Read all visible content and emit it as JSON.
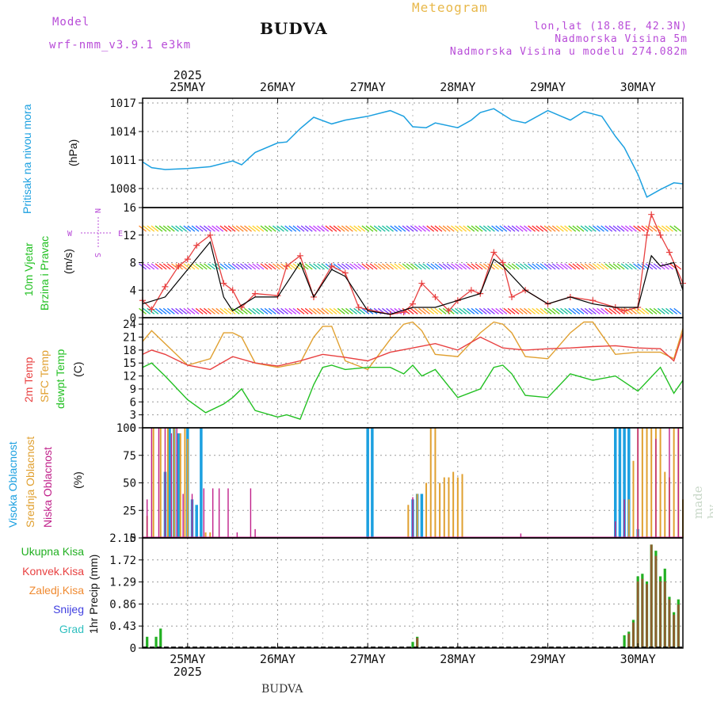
{
  "header": {
    "model_label": "Model",
    "model_name": "wrf-nmm_v3.9.1 e3km",
    "title": "BUDVA",
    "meteogram": "Meteogram",
    "lonlat": "lon,lat (18.8E, 42.3N)",
    "elevation": "Nadmorska Visina 5m",
    "model_elevation": "Nadmorska Visina u modelu 274.082m"
  },
  "footer": {
    "station": "BUDVA",
    "made_by": "made by Angel"
  },
  "x_axis": {
    "year": "2025",
    "dates": [
      "25MAY",
      "26MAY",
      "27MAY",
      "28MAY",
      "29MAY",
      "30MAY"
    ],
    "start_day": 24.5,
    "end_day": 30.5
  },
  "panels": {
    "pressure": {
      "label": "Pritisak na nivou mora",
      "unit": "(hPa)",
      "color": "#1ca0e0"
    },
    "wind": {
      "label1": "10m Vjetar",
      "label2": "Brzina i Pravac",
      "unit": "(m/s)",
      "color": "#22c022",
      "compass": {
        "n": "N",
        "w": "W",
        "e": "E",
        "s": "S"
      }
    },
    "temp": {
      "label1": "2m Temp",
      "label2": "SFC Temp",
      "label3": "dewpt Temp",
      "unit": "(C)",
      "colors": {
        "t2m": "#e84040",
        "sfc": "#e0a030",
        "dew": "#22c022"
      }
    },
    "cloud": {
      "label1": "Visoka Oblacnost",
      "label2": "Srednja Oblacnost",
      "label3": "Niska Oblacnost",
      "unit": "(%)",
      "colors": {
        "high": "#1ca0e0",
        "mid": "#e0a030",
        "low": "#c0208a"
      }
    },
    "precip": {
      "unit": "1hr Precip (mm)",
      "legend": [
        {
          "name": "Ukupna Kisa",
          "color": "#22b022"
        },
        {
          "name": "Konvek.Kisa",
          "color": "#e84040"
        },
        {
          "name": "Zaledj.Kisa",
          "color": "#f08a30"
        },
        {
          "name": "Snijeg",
          "color": "#4040e0"
        },
        {
          "name": "Grad",
          "color": "#30c0c0"
        }
      ]
    }
  },
  "chart_data": [
    {
      "type": "line",
      "title": "Pritisak na nivou mora",
      "ylabel": "hPa",
      "ylim": [
        1006,
        1017.5
      ],
      "yticks": [
        1008,
        1011,
        1014,
        1017
      ],
      "x": [
        24.5,
        24.6,
        24.75,
        25.0,
        25.25,
        25.5,
        25.6,
        25.75,
        26.0,
        26.1,
        26.25,
        26.4,
        26.6,
        26.75,
        27.0,
        27.25,
        27.4,
        27.5,
        27.65,
        27.75,
        28.0,
        28.15,
        28.25,
        28.4,
        28.6,
        28.75,
        29.0,
        29.15,
        29.25,
        29.4,
        29.6,
        29.75,
        29.85,
        30.0,
        30.1,
        30.25,
        30.4,
        30.5
      ],
      "values": [
        1010.8,
        1010.2,
        1010.0,
        1010.1,
        1010.3,
        1010.9,
        1010.5,
        1011.8,
        1012.8,
        1012.9,
        1014.3,
        1015.5,
        1014.8,
        1015.2,
        1015.6,
        1016.2,
        1015.6,
        1014.5,
        1014.4,
        1014.9,
        1014.4,
        1015.2,
        1016.0,
        1016.4,
        1015.2,
        1014.9,
        1016.2,
        1015.6,
        1015.2,
        1016.1,
        1015.6,
        1013.5,
        1012.3,
        1009.5,
        1007.1,
        1007.9,
        1008.6,
        1008.5
      ],
      "series": [
        {
          "name": "Pritisak",
          "values_ref": "values"
        }
      ]
    },
    {
      "type": "line",
      "title": "10m Vjetar Brzina i Pravac",
      "ylabel": "m/s",
      "ylim": [
        0,
        16
      ],
      "yticks": [
        0,
        4,
        8,
        12,
        16
      ],
      "series": [
        {
          "name": "Brzina (crveno)",
          "x": [
            24.5,
            24.6,
            24.75,
            24.9,
            25.0,
            25.1,
            25.25,
            25.4,
            25.5,
            25.6,
            25.75,
            26.0,
            26.1,
            26.25,
            26.4,
            26.6,
            26.75,
            26.9,
            27.0,
            27.25,
            27.4,
            27.5,
            27.6,
            27.75,
            27.9,
            28.0,
            28.15,
            28.25,
            28.4,
            28.5,
            28.6,
            28.75,
            29.0,
            29.25,
            29.5,
            29.75,
            29.85,
            30.0,
            30.1,
            30.15,
            30.25,
            30.35,
            30.5
          ],
          "values": [
            2.5,
            1.2,
            4.5,
            7.5,
            8.5,
            10.5,
            12.0,
            5.0,
            4.0,
            1.5,
            3.5,
            3.2,
            7.5,
            9.0,
            3.0,
            7.5,
            6.5,
            1.5,
            1.2,
            0.5,
            0.8,
            2.0,
            5.0,
            3.0,
            1.0,
            2.5,
            4.0,
            3.5,
            9.5,
            8.0,
            3.0,
            4.0,
            2.0,
            3.0,
            2.5,
            1.5,
            1.0,
            1.5,
            12.0,
            15.0,
            12.0,
            9.5,
            5.0
          ]
        },
        {
          "name": "Brzina (crno)",
          "x": [
            24.5,
            24.75,
            25.0,
            25.25,
            25.4,
            25.5,
            25.75,
            26.0,
            26.25,
            26.4,
            26.6,
            26.75,
            27.0,
            27.25,
            27.5,
            27.75,
            28.0,
            28.25,
            28.4,
            28.5,
            28.75,
            29.0,
            29.25,
            29.5,
            29.75,
            30.0,
            30.15,
            30.25,
            30.4,
            30.5
          ],
          "values": [
            2.0,
            3.0,
            7.0,
            11.0,
            3.0,
            1.0,
            3.0,
            3.0,
            8.0,
            3.0,
            7.0,
            6.0,
            1.0,
            0.5,
            1.5,
            1.5,
            2.5,
            3.5,
            8.5,
            7.5,
            4.0,
            2.0,
            3.0,
            2.0,
            1.5,
            1.5,
            9.0,
            7.5,
            8.0,
            4.0
          ]
        }
      ]
    },
    {
      "type": "line",
      "title": "2m Temp / SFC Temp / dewpt Temp",
      "ylabel": "C",
      "ylim": [
        0,
        25.5
      ],
      "yticks": [
        0,
        3,
        6,
        9,
        12,
        15,
        18,
        21,
        24
      ],
      "series": [
        {
          "name": "2m Temp",
          "x": [
            24.5,
            24.6,
            24.75,
            25.0,
            25.25,
            25.5,
            25.75,
            26.0,
            26.25,
            26.5,
            26.75,
            27.0,
            27.25,
            27.5,
            27.75,
            28.0,
            28.25,
            28.5,
            28.75,
            29.0,
            29.25,
            29.5,
            29.75,
            30.0,
            30.25,
            30.4,
            30.5
          ],
          "values": [
            17.0,
            18.0,
            17.0,
            14.5,
            13.5,
            16.5,
            15.0,
            14.3,
            15.5,
            17.0,
            16.3,
            15.5,
            17.5,
            18.5,
            19.5,
            18.0,
            21.0,
            18.5,
            18.0,
            18.3,
            18.5,
            18.8,
            19.0,
            18.5,
            18.3,
            15.5,
            22.0
          ]
        },
        {
          "name": "SFC Temp",
          "x": [
            24.5,
            24.6,
            24.75,
            25.0,
            25.25,
            25.4,
            25.5,
            25.6,
            25.75,
            26.0,
            26.25,
            26.4,
            26.5,
            26.6,
            26.75,
            27.0,
            27.25,
            27.4,
            27.5,
            27.6,
            27.75,
            28.0,
            28.25,
            28.4,
            28.5,
            28.6,
            28.75,
            29.0,
            29.25,
            29.4,
            29.5,
            29.6,
            29.75,
            30.0,
            30.25,
            30.4,
            30.5
          ],
          "values": [
            20.0,
            22.5,
            19.5,
            14.5,
            16.0,
            22.0,
            22.0,
            21.0,
            15.0,
            14.0,
            15.0,
            21.0,
            23.5,
            23.5,
            15.5,
            13.5,
            20.5,
            24.0,
            24.5,
            22.5,
            17.0,
            16.5,
            22.0,
            24.5,
            24.0,
            22.0,
            16.5,
            16.0,
            22.0,
            24.5,
            24.5,
            21.5,
            17.0,
            17.5,
            17.5,
            16.0,
            23.0
          ]
        },
        {
          "name": "dewpt Temp",
          "x": [
            24.5,
            24.6,
            24.75,
            25.0,
            25.2,
            25.4,
            25.5,
            25.6,
            25.75,
            26.0,
            26.1,
            26.25,
            26.4,
            26.5,
            26.6,
            26.75,
            27.0,
            27.25,
            27.4,
            27.5,
            27.6,
            27.75,
            28.0,
            28.25,
            28.4,
            28.5,
            28.6,
            28.75,
            29.0,
            29.25,
            29.5,
            29.75,
            30.0,
            30.25,
            30.4,
            30.5
          ],
          "values": [
            14.0,
            15.0,
            12.0,
            6.5,
            3.5,
            5.5,
            7.0,
            9.0,
            4.0,
            2.5,
            3.0,
            2.0,
            10.0,
            14.0,
            14.5,
            13.5,
            14.0,
            14.0,
            12.5,
            14.5,
            12.0,
            13.5,
            7.0,
            9.0,
            14.0,
            14.5,
            12.5,
            7.5,
            7.0,
            12.5,
            11.0,
            12.0,
            8.5,
            14.0,
            8.0,
            11.0
          ]
        }
      ]
    },
    {
      "type": "bar",
      "title": "Oblacnost",
      "ylabel": "%",
      "ylim": [
        0,
        100
      ],
      "yticks": [
        0,
        25,
        50,
        75,
        100
      ],
      "series": [
        {
          "name": "Visoka Oblacnost",
          "x": [
            24.75,
            24.8,
            24.85,
            24.9,
            25.0,
            25.05,
            25.1,
            25.15,
            27.0,
            27.05,
            27.5,
            27.55,
            27.6,
            29.75,
            29.8,
            29.85,
            29.9,
            30.0
          ],
          "values": [
            60,
            100,
            100,
            95,
            100,
            35,
            30,
            100,
            100,
            100,
            35,
            40,
            40,
            100,
            100,
            100,
            100,
            8
          ]
        },
        {
          "name": "Srednja Oblacnost",
          "x": [
            24.55,
            24.62,
            24.7,
            24.78,
            24.85,
            24.92,
            24.97,
            25.0,
            25.2,
            25.25,
            27.45,
            27.55,
            27.65,
            27.7,
            27.75,
            27.8,
            27.85,
            27.9,
            27.95,
            28.0,
            28.05,
            29.9,
            29.95,
            30.0,
            30.05,
            30.1,
            30.15,
            30.2,
            30.25,
            30.3,
            30.35,
            30.4,
            30.45,
            30.5
          ],
          "values": [
            20,
            100,
            100,
            100,
            100,
            95,
            100,
            90,
            5,
            5,
            30,
            40,
            50,
            100,
            100,
            50,
            55,
            55,
            60,
            55,
            58,
            35,
            70,
            100,
            100,
            100,
            100,
            100,
            100,
            60,
            55,
            100,
            100,
            35
          ]
        },
        {
          "name": "Niska Oblacnost",
          "x": [
            24.55,
            24.6,
            24.68,
            24.75,
            24.82,
            24.88,
            24.95,
            25.05,
            25.18,
            25.28,
            25.35,
            25.45,
            25.55,
            25.7,
            25.75,
            27.5,
            28.7,
            29.75,
            29.85,
            30.0,
            30.2,
            30.35,
            30.45
          ],
          "values": [
            35,
            100,
            100,
            100,
            95,
            100,
            40,
            40,
            45,
            45,
            45,
            45,
            5,
            45,
            8,
            37,
            4,
            15,
            35,
            100,
            90,
            100,
            100
          ]
        }
      ]
    },
    {
      "type": "bar",
      "title": "1hr Precip",
      "ylabel": "mm",
      "ylim": [
        0,
        2.15
      ],
      "yticks": [
        0,
        0.43,
        0.86,
        1.29,
        1.72,
        2.15
      ],
      "series": [
        {
          "name": "Ukupna Kisa",
          "x": [
            24.55,
            24.65,
            24.7,
            27.5,
            27.55,
            29.85,
            29.9,
            29.95,
            30.0,
            30.05,
            30.1,
            30.15,
            30.2,
            30.25,
            30.3,
            30.35,
            30.4,
            30.45
          ],
          "values": [
            0.22,
            0.22,
            0.38,
            0.12,
            0.22,
            0.25,
            0.32,
            0.55,
            1.4,
            1.45,
            1.3,
            2.02,
            1.9,
            1.4,
            1.55,
            1.0,
            0.7,
            0.95
          ]
        },
        {
          "name": "Konvek.Kisa",
          "x": [
            27.55,
            29.9,
            29.95,
            30.0,
            30.05,
            30.1,
            30.15,
            30.2,
            30.25,
            30.3,
            30.35,
            30.4,
            30.45
          ],
          "values": [
            0.2,
            0.28,
            0.5,
            1.3,
            1.35,
            1.25,
            2.02,
            1.8,
            1.3,
            1.3,
            0.95,
            0.65,
            0.85
          ]
        }
      ]
    }
  ]
}
